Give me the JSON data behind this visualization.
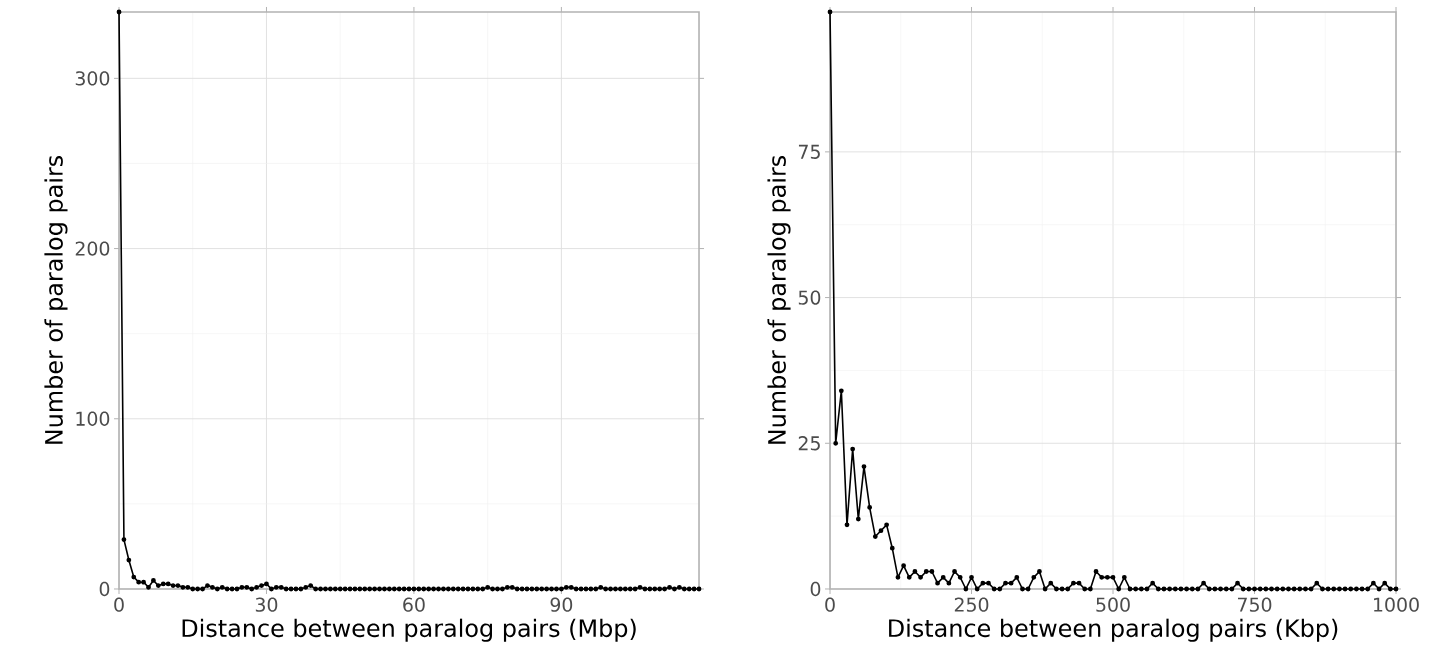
{
  "chart_data": [
    {
      "type": "line",
      "xlabel": "Distance between paralog pairs (Mbp)",
      "ylabel": "Number of paralog pairs",
      "x": [
        0,
        1,
        2,
        3,
        4,
        5,
        6,
        7,
        8,
        9,
        10,
        11,
        12,
        13,
        14,
        15,
        16,
        17,
        18,
        19,
        20,
        21,
        22,
        23,
        24,
        25,
        26,
        27,
        28,
        29,
        30,
        31,
        32,
        33,
        34,
        35,
        36,
        37,
        38,
        39,
        40,
        41,
        42,
        43,
        44,
        45,
        46,
        47,
        48,
        49,
        50,
        51,
        52,
        53,
        54,
        55,
        56,
        57,
        58,
        59,
        60,
        61,
        62,
        63,
        64,
        65,
        66,
        67,
        68,
        69,
        70,
        71,
        72,
        73,
        74,
        75,
        76,
        77,
        78,
        79,
        80,
        81,
        82,
        83,
        84,
        85,
        86,
        87,
        88,
        89,
        90,
        91,
        92,
        93,
        94,
        95,
        96,
        97,
        98,
        99,
        100,
        101,
        102,
        103,
        104,
        105,
        106,
        107,
        108,
        109,
        110,
        111,
        112,
        113,
        114,
        115,
        116,
        117,
        118
      ],
      "values": [
        339,
        29,
        17,
        7,
        4,
        4,
        1,
        5,
        2,
        3,
        3,
        2,
        2,
        1,
        1,
        0,
        0,
        0,
        2,
        1,
        0,
        1,
        0,
        0,
        0,
        1,
        1,
        0,
        1,
        2,
        3,
        0,
        1,
        1,
        0,
        0,
        0,
        0,
        1,
        2,
        0,
        0,
        0,
        0,
        0,
        0,
        0,
        0,
        0,
        0,
        0,
        0,
        0,
        0,
        0,
        0,
        0,
        0,
        0,
        0,
        0,
        0,
        0,
        0,
        0,
        0,
        0,
        0,
        0,
        0,
        0,
        0,
        0,
        0,
        0,
        1,
        0,
        0,
        0,
        1,
        1,
        0,
        0,
        0,
        0,
        0,
        0,
        0,
        0,
        0,
        0,
        1,
        1,
        0,
        0,
        0,
        0,
        0,
        1,
        0,
        0,
        0,
        0,
        0,
        0,
        0,
        1,
        0,
        0,
        0,
        0,
        0,
        1,
        0,
        1,
        0,
        0,
        0,
        0
      ],
      "color": "#000000",
      "marker": "circle",
      "grid": true,
      "xlim": [
        0,
        118
      ],
      "ylim": [
        0,
        339
      ],
      "xticks": [
        0,
        30,
        60,
        90
      ],
      "yticks": [
        0,
        100,
        200,
        300
      ]
    },
    {
      "type": "line",
      "xlabel": "Distance between paralog pairs (Kbp)",
      "ylabel": "Number of paralog pairs",
      "x": [
        0,
        10,
        20,
        30,
        40,
        50,
        60,
        70,
        80,
        90,
        100,
        110,
        120,
        130,
        140,
        150,
        160,
        170,
        180,
        190,
        200,
        210,
        220,
        230,
        240,
        250,
        260,
        270,
        280,
        290,
        300,
        310,
        320,
        330,
        340,
        350,
        360,
        370,
        380,
        390,
        400,
        410,
        420,
        430,
        440,
        450,
        460,
        470,
        480,
        490,
        500,
        510,
        520,
        530,
        540,
        550,
        560,
        570,
        580,
        590,
        600,
        610,
        620,
        630,
        640,
        650,
        660,
        670,
        680,
        690,
        700,
        710,
        720,
        730,
        740,
        750,
        760,
        770,
        780,
        790,
        800,
        810,
        820,
        830,
        840,
        850,
        860,
        870,
        880,
        890,
        900,
        910,
        920,
        930,
        940,
        950,
        960,
        970,
        980,
        990,
        1000
      ],
      "values": [
        99,
        25,
        34,
        11,
        24,
        12,
        21,
        14,
        9,
        10,
        11,
        7,
        2,
        4,
        2,
        3,
        2,
        3,
        3,
        1,
        2,
        1,
        3,
        2,
        0,
        2,
        0,
        1,
        1,
        0,
        0,
        1,
        1,
        2,
        0,
        0,
        2,
        3,
        0,
        1,
        0,
        0,
        0,
        1,
        1,
        0,
        0,
        3,
        2,
        2,
        2,
        0,
        2,
        0,
        0,
        0,
        0,
        1,
        0,
        0,
        0,
        0,
        0,
        0,
        0,
        0,
        1,
        0,
        0,
        0,
        0,
        0,
        1,
        0,
        0,
        0,
        0,
        0,
        0,
        0,
        0,
        0,
        0,
        0,
        0,
        0,
        1,
        0,
        0,
        0,
        0,
        0,
        0,
        0,
        0,
        0,
        1,
        0,
        1,
        0,
        0
      ],
      "color": "#000000",
      "marker": "circle",
      "grid": true,
      "xlim": [
        0,
        1000
      ],
      "ylim": [
        0,
        99
      ],
      "xticks": [
        0,
        250,
        500,
        750,
        1000
      ],
      "yticks": [
        0,
        25,
        50,
        75
      ]
    }
  ]
}
